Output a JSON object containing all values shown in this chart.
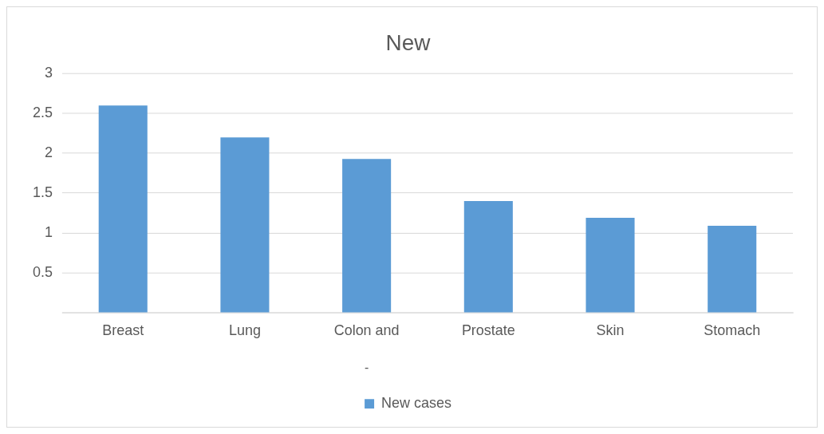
{
  "chart_data": {
    "type": "bar",
    "title": "New",
    "categories": [
      "Breast",
      "Lung",
      "Colon and",
      "Prostate",
      "Skin",
      "Stomach"
    ],
    "series": [
      {
        "name": "New cases",
        "color": "#5b9bd5",
        "values": [
          2.6,
          2.2,
          1.93,
          1.4,
          1.19,
          1.09
        ]
      }
    ],
    "ylim": [
      0,
      3
    ],
    "yticks": [
      {
        "value": 0,
        "label": null
      },
      0.5,
      1,
      1.5,
      2,
      2.5,
      3
    ],
    "grid": "y",
    "legend": "bottom",
    "annotations": [
      "-"
    ]
  }
}
